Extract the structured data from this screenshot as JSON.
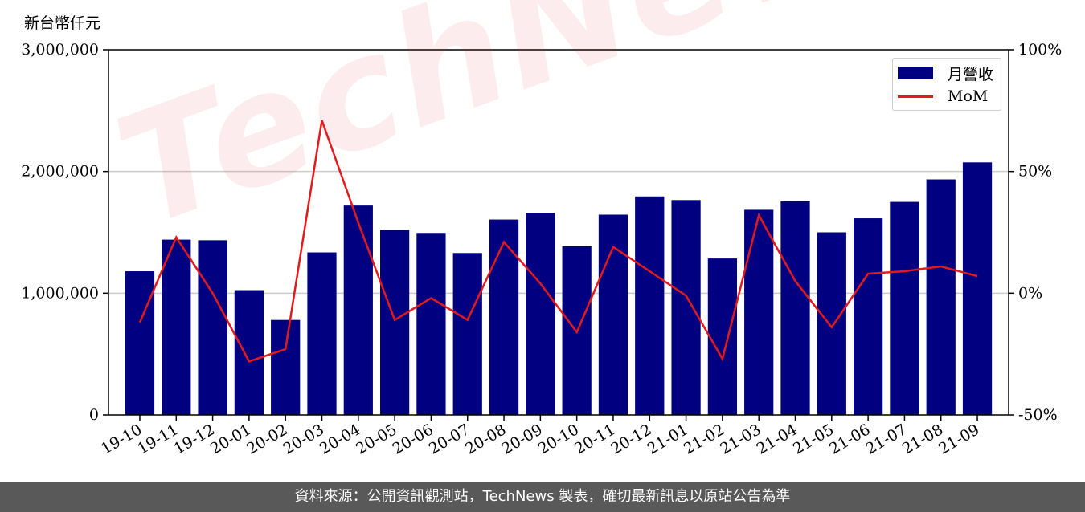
{
  "unit_label": "新台幣仟元",
  "watermark": "TechNews",
  "footer_text": "資料來源：公開資訊觀測站，TechNews 製表，確切最新訊息以原站公告為準",
  "chart_data": {
    "type": "bar",
    "categories": [
      "19-10",
      "19-11",
      "19-12",
      "20-01",
      "20-02",
      "20-03",
      "20-04",
      "20-05",
      "20-06",
      "20-07",
      "20-08",
      "20-09",
      "20-10",
      "20-11",
      "20-12",
      "21-01",
      "21-02",
      "21-03",
      "21-04",
      "21-05",
      "21-06",
      "21-07",
      "21-08",
      "21-09"
    ],
    "series": [
      {
        "name": "月營收",
        "type": "bar",
        "axis": "left",
        "color": "#000080",
        "values": [
          1180000,
          1440000,
          1435000,
          1025000,
          780000,
          1335000,
          1720000,
          1520000,
          1495000,
          1330000,
          1605000,
          1660000,
          1385000,
          1645000,
          1795000,
          1765000,
          1285000,
          1685000,
          1755000,
          1500000,
          1615000,
          1750000,
          1935000,
          2075000
        ]
      },
      {
        "name": "MoM",
        "type": "line",
        "axis": "right",
        "color": "#e31a1c",
        "values": [
          -12,
          23,
          0,
          -28,
          -23,
          71,
          29,
          -11,
          -2,
          -11,
          21,
          4,
          -16,
          19,
          9,
          -1,
          -27,
          32,
          5,
          -14,
          8,
          9,
          11,
          7
        ]
      }
    ],
    "y_left": {
      "min": 0,
      "max": 3000000,
      "ticks": [
        0,
        1000000,
        2000000,
        3000000
      ],
      "tick_labels": [
        "0",
        "1,000,000",
        "2,000,000",
        "3,000,000"
      ]
    },
    "y_right": {
      "min": -50,
      "max": 100,
      "ticks": [
        -50,
        0,
        50,
        100
      ],
      "tick_labels": [
        "-50%",
        "0%",
        "50%",
        "100%"
      ]
    },
    "grid": "horizontal",
    "legend_position": "top-right"
  }
}
